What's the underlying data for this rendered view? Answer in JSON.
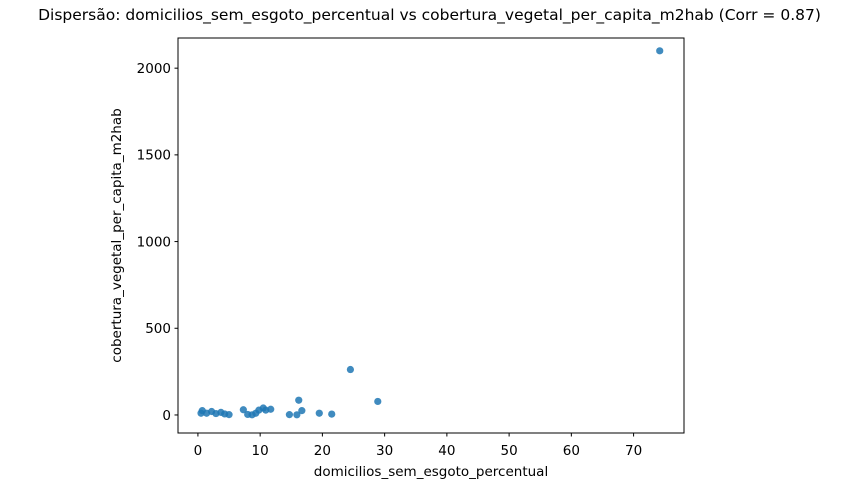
{
  "figure": {
    "background": "#ffffff"
  },
  "chart_data": {
    "type": "scatter",
    "title": "Dispersão: domicilios_sem_esgoto_percentual vs cobertura_vegetal_per_capita_m2hab (Corr = 0.87)",
    "xlabel": "domicilios_sem_esgoto_percentual",
    "ylabel": "cobertura_vegetal_per_capita_m2hab",
    "correlation": 0.87,
    "xlim": [
      -3.2,
      78.1
    ],
    "ylim": [
      -104,
      2174
    ],
    "xticks": [
      0,
      10,
      20,
      30,
      40,
      50,
      60,
      70
    ],
    "yticks": [
      0,
      500,
      1000,
      1500,
      2000
    ],
    "grid": false,
    "legend_position": "none",
    "marker_color": "#1f77b4",
    "marker_alpha": 0.85,
    "marker_radius": 3.6,
    "points": [
      [
        0.5,
        10
      ],
      [
        0.7,
        25
      ],
      [
        1.4,
        10
      ],
      [
        2.2,
        20
      ],
      [
        2.9,
        8
      ],
      [
        3.7,
        15
      ],
      [
        4.3,
        6
      ],
      [
        5.0,
        2
      ],
      [
        7.3,
        30
      ],
      [
        8.0,
        3
      ],
      [
        8.7,
        1
      ],
      [
        9.3,
        10
      ],
      [
        9.8,
        28
      ],
      [
        10.5,
        40
      ],
      [
        10.9,
        28
      ],
      [
        11.7,
        33
      ],
      [
        14.7,
        2
      ],
      [
        15.9,
        1
      ],
      [
        16.2,
        85
      ],
      [
        16.7,
        25
      ],
      [
        19.5,
        10
      ],
      [
        21.5,
        5
      ],
      [
        24.5,
        262
      ],
      [
        28.9,
        78
      ],
      [
        74.2,
        2100
      ]
    ]
  }
}
